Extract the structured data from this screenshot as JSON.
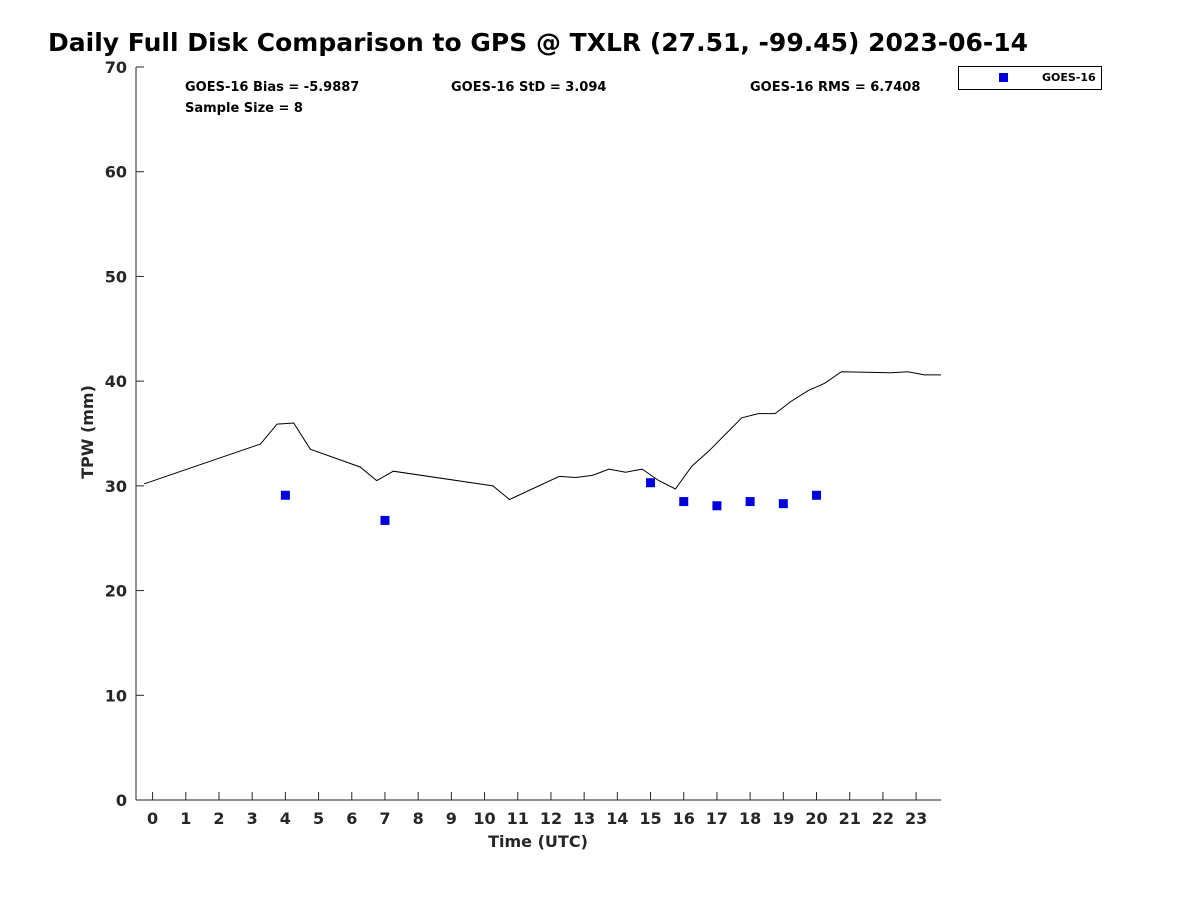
{
  "chart_data": {
    "type": "scatter",
    "title": "Daily Full Disk Comparison to GPS @ TXLR (27.51, -99.45) 2023-06-14",
    "xlabel": "Time (UTC)",
    "ylabel": "TPW (mm)",
    "xlim": [
      -0.5,
      23.75
    ],
    "ylim": [
      0,
      70
    ],
    "x_ticks": [
      "0",
      "1",
      "2",
      "3",
      "4",
      "5",
      "6",
      "7",
      "8",
      "9",
      "10",
      "11",
      "12",
      "13",
      "14",
      "15",
      "16",
      "17",
      "18",
      "19",
      "20",
      "21",
      "22",
      "23"
    ],
    "y_ticks": [
      "0",
      "10",
      "20",
      "30",
      "40",
      "50",
      "60",
      "70"
    ],
    "grid": false,
    "legend_position": "top-right",
    "stats": {
      "bias": "GOES-16 Bias = -5.9887",
      "std": "GOES-16 StD = 3.094",
      "rms": "GOES-16 RMS = 6.7408",
      "sample": "Sample Size = 8"
    },
    "series": [
      {
        "kind": "line",
        "color": "#000000",
        "x": [
          -0.25,
          3.25,
          3.75,
          4.25,
          4.75,
          6.25,
          6.75,
          7.25,
          10.25,
          10.75,
          12.25,
          12.75,
          13.25,
          13.75,
          14.25,
          14.75,
          15.25,
          15.75,
          16.25,
          16.75,
          17.25,
          17.75,
          18.25,
          18.75,
          19.25,
          19.75,
          20.25,
          20.75,
          22.25,
          22.75,
          23.25,
          23.75
        ],
        "y": [
          30.2,
          34.0,
          35.9,
          36.0,
          33.5,
          31.8,
          30.5,
          31.4,
          30.0,
          28.7,
          30.9,
          30.8,
          31.0,
          31.6,
          31.3,
          31.6,
          30.5,
          29.7,
          31.9,
          33.3,
          34.9,
          36.5,
          36.9,
          36.9,
          38.1,
          39.1,
          39.8,
          40.9,
          40.8,
          40.9,
          40.6,
          40.6
        ]
      },
      {
        "kind": "scatter",
        "name": "GOES-16",
        "color": "#0000dd",
        "x": [
          4,
          7,
          15,
          16,
          17,
          18,
          19,
          20
        ],
        "y": [
          29.1,
          26.7,
          30.3,
          28.5,
          28.1,
          28.5,
          28.3,
          29.1
        ]
      }
    ]
  }
}
